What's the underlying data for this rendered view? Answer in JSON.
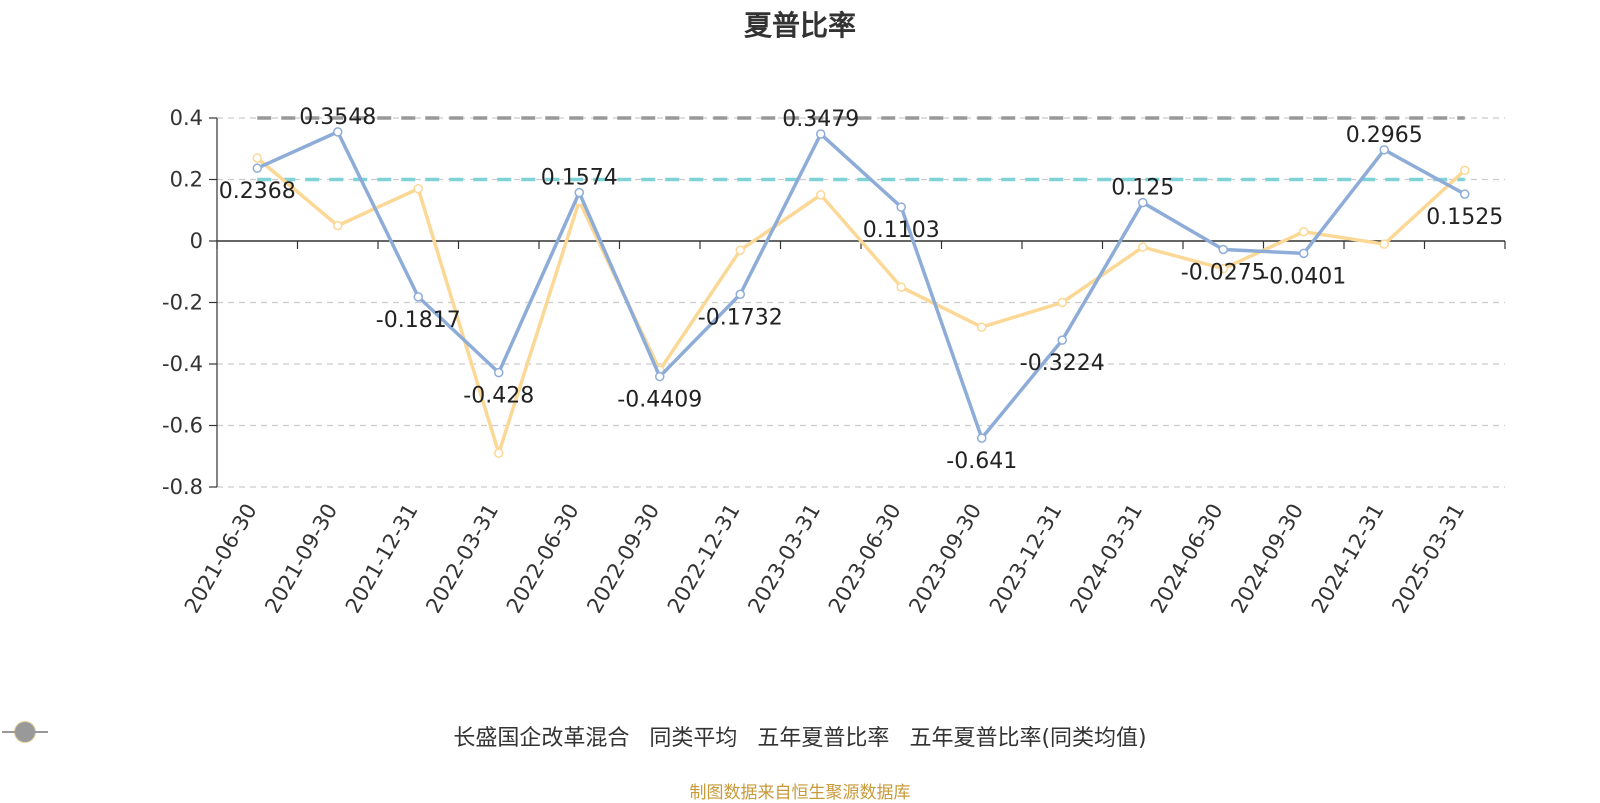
{
  "title": "夏普比率",
  "source": "制图数据来自恒生聚源数据库",
  "chart_data": {
    "type": "line",
    "title": "夏普比率",
    "categories": [
      "2021-06-30",
      "2021-09-30",
      "2021-12-31",
      "2022-03-31",
      "2022-06-30",
      "2022-09-30",
      "2022-12-31",
      "2023-03-31",
      "2023-06-30",
      "2023-09-30",
      "2023-12-31",
      "2024-03-31",
      "2024-06-30",
      "2024-09-30",
      "2024-12-31",
      "2025-03-31"
    ],
    "ylim": [
      -0.8,
      0.4
    ],
    "yticks": [
      "0.4",
      "0.2",
      "0",
      "-0.2",
      "-0.4",
      "-0.6",
      "-0.8"
    ],
    "grid": true,
    "legend_position": "bottom",
    "series": [
      {
        "name": "长盛国企改革混合",
        "color": "#8eacd8",
        "values": [
          0.2368,
          0.3548,
          -0.1817,
          -0.428,
          0.1574,
          -0.4409,
          -0.1732,
          0.3479,
          0.1103,
          -0.641,
          -0.3224,
          0.125,
          -0.0275,
          -0.0401,
          0.2965,
          0.1525
        ],
        "labels": [
          "0.2368",
          "0.3548",
          "-0.1817",
          "-0.428",
          "0.1574",
          "-0.4409",
          "-0.1732",
          "0.3479",
          "0.1103",
          "-0.641",
          "-0.3224",
          "0.125",
          "-0.0275",
          "-0.0401",
          "0.2965",
          "0.1525"
        ]
      },
      {
        "name": "同类平均",
        "color": "#fcd896",
        "values": [
          0.27,
          0.05,
          0.17,
          -0.69,
          0.13,
          -0.42,
          -0.03,
          0.15,
          -0.15,
          -0.28,
          -0.2,
          -0.02,
          -0.09,
          0.03,
          -0.01,
          0.23
        ]
      },
      {
        "name": "五年夏普比率",
        "color": "#7fd3d6",
        "constant": 0.2
      },
      {
        "name": "五年夏普比率(同类均值)",
        "color": "#999999",
        "constant": 0.4
      }
    ]
  }
}
